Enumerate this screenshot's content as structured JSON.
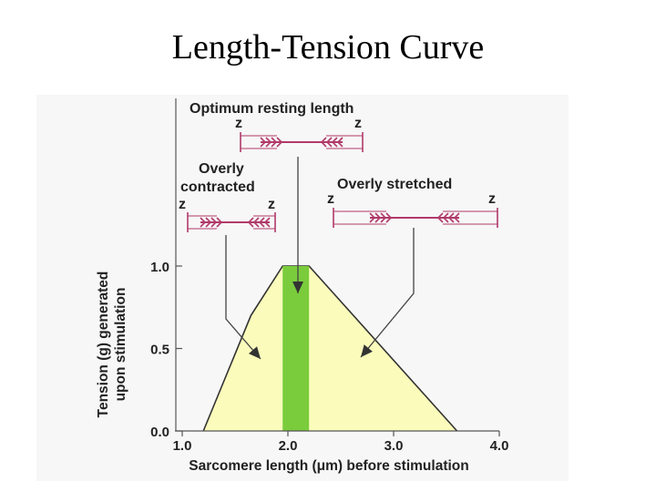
{
  "slide": {
    "title": "Length-Tension Curve"
  },
  "colors": {
    "curve_fill": "#fbfcbb",
    "optimum_band": "#7acc3c",
    "filament": "#b03a6a",
    "axis": "#555555",
    "panel": "#f7f7f7"
  },
  "chart_data": {
    "type": "area",
    "title": "",
    "xlabel": "Sarcomere length (μm) before stimulation",
    "ylabel_lines": [
      "Tension (g) generated",
      "upon stimulation"
    ],
    "xlim": [
      1.0,
      4.0
    ],
    "ylim": [
      0.0,
      1.0
    ],
    "x_ticks": [
      1.0,
      2.0,
      3.0,
      4.0
    ],
    "x_tick_labels": [
      "1.0",
      "2.0",
      "3.0",
      "4.0"
    ],
    "y_ticks": [
      0.0,
      0.5,
      1.0
    ],
    "y_tick_labels": [
      "0.0",
      "0.5",
      "1.0"
    ],
    "series": [
      {
        "x": [
          1.2,
          1.65,
          1.95,
          2.2,
          3.6
        ],
        "y": [
          0.0,
          0.7,
          1.0,
          1.0,
          0.0
        ]
      }
    ],
    "optimum_band": [
      1.95,
      2.2
    ],
    "annotations": {
      "optimum": {
        "label": "Optimum resting length",
        "z_left": "z",
        "z_right": "z"
      },
      "contracted": {
        "label_line1": "Overly",
        "label_line2": "contracted",
        "z_left": "z",
        "z_right": "z"
      },
      "stretched": {
        "label": "Overly stretched",
        "z_left": "z",
        "z_right": "z"
      }
    }
  }
}
